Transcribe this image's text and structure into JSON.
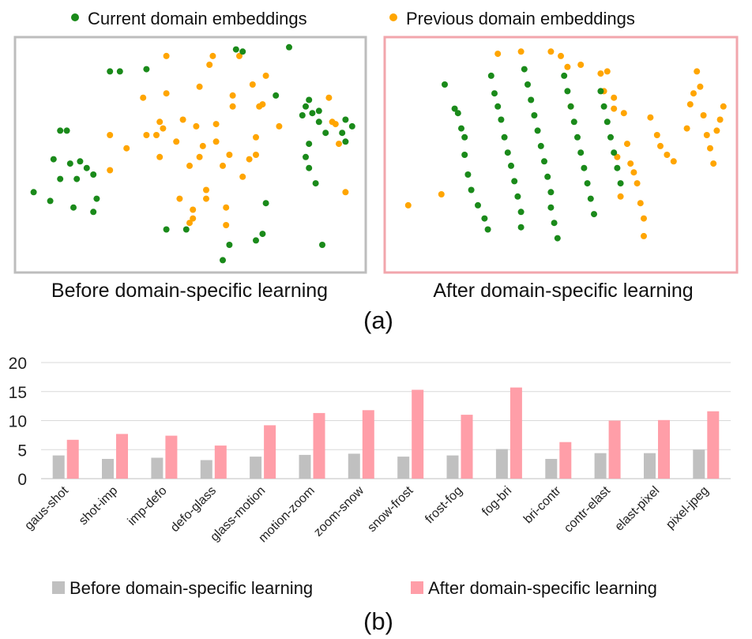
{
  "colors": {
    "current": "#1a8a1a",
    "previous": "#ffa500",
    "before_bar": "#c0c0c0",
    "after_bar": "#ff9ea8",
    "left_frame": "#bdbdbd",
    "right_frame": "#f2a6ac",
    "grid": "#d9d9d9"
  },
  "chart_data": [
    {
      "type": "scatter",
      "panel_id": "a",
      "panel_label": "(a)",
      "legend": {
        "current": "Current domain embeddings",
        "previous": "Previous domain embeddings"
      },
      "axis_range": {
        "x": [
          0,
          100
        ],
        "y": [
          0,
          100
        ]
      },
      "plots": [
        {
          "title": "Before domain-specific learning",
          "current": [
            [
              3,
              33
            ],
            [
              8,
              29
            ],
            [
              11,
              61
            ],
            [
              9,
              48
            ],
            [
              11,
              39
            ],
            [
              13,
              61
            ],
            [
              14,
              46
            ],
            [
              15,
              26
            ],
            [
              16,
              39
            ],
            [
              17,
              47
            ],
            [
              19,
              44
            ],
            [
              21,
              41
            ],
            [
              21,
              24
            ],
            [
              22,
              30
            ],
            [
              26,
              88
            ],
            [
              29,
              88
            ],
            [
              37,
              89
            ],
            [
              43,
              16
            ],
            [
              49,
              16
            ],
            [
              60,
              2
            ],
            [
              64,
              98
            ],
            [
              66,
              97
            ],
            [
              62,
              9
            ],
            [
              70,
              11
            ],
            [
              72,
              14
            ],
            [
              73,
              28
            ],
            [
              76,
              77
            ],
            [
              80,
              99
            ],
            [
              84,
              68
            ],
            [
              85,
              49
            ],
            [
              86,
              44
            ],
            [
              86,
              55
            ],
            [
              87,
              69
            ],
            [
              88,
              37
            ],
            [
              89,
              65
            ],
            [
              91,
              60
            ],
            [
              86,
              75
            ],
            [
              85,
              72
            ],
            [
              89,
              70
            ],
            [
              90,
              9
            ],
            [
              97,
              66
            ],
            [
              97,
              56
            ],
            [
              96,
              60
            ],
            [
              99,
              63
            ]
          ],
          "previous": [
            [
              26,
              59
            ],
            [
              26,
              43
            ],
            [
              31,
              53
            ],
            [
              36,
              76
            ],
            [
              37,
              59
            ],
            [
              40,
              59
            ],
            [
              41,
              49
            ],
            [
              41,
              65
            ],
            [
              42,
              62
            ],
            [
              43,
              78
            ],
            [
              43,
              95
            ],
            [
              46,
              56
            ],
            [
              47,
              30
            ],
            [
              48,
              66
            ],
            [
              50,
              45
            ],
            [
              50,
              19
            ],
            [
              51,
              25
            ],
            [
              51,
              21
            ],
            [
              52,
              63
            ],
            [
              53,
              49
            ],
            [
              53,
              81
            ],
            [
              54,
              54
            ],
            [
              55,
              34
            ],
            [
              55,
              30
            ],
            [
              56,
              91
            ],
            [
              57,
              95
            ],
            [
              58,
              64
            ],
            [
              58,
              56
            ],
            [
              60,
              45
            ],
            [
              61,
              26
            ],
            [
              61,
              18
            ],
            [
              62,
              50
            ],
            [
              63,
              72
            ],
            [
              63,
              77
            ],
            [
              65,
              95
            ],
            [
              66,
              40
            ],
            [
              68,
              48
            ],
            [
              69,
              82
            ],
            [
              70,
              50
            ],
            [
              70,
              58
            ],
            [
              71,
              72
            ],
            [
              72,
              73
            ],
            [
              73,
              86
            ],
            [
              77,
              63
            ],
            [
              92,
              76
            ],
            [
              93,
              65
            ],
            [
              94,
              64
            ],
            [
              95,
              55
            ],
            [
              97,
              33
            ]
          ]
        },
        {
          "title": "After domain-specific learning",
          "current": [
            [
              15,
              82
            ],
            [
              18,
              71
            ],
            [
              19,
              69
            ],
            [
              20,
              62
            ],
            [
              21,
              58
            ],
            [
              21,
              50
            ],
            [
              22,
              41
            ],
            [
              23,
              34
            ],
            [
              25,
              27
            ],
            [
              27,
              21
            ],
            [
              28,
              16
            ],
            [
              29,
              86
            ],
            [
              30,
              78
            ],
            [
              31,
              72
            ],
            [
              32,
              66
            ],
            [
              33,
              58
            ],
            [
              34,
              51
            ],
            [
              35,
              45
            ],
            [
              36,
              38
            ],
            [
              37,
              31
            ],
            [
              38,
              24
            ],
            [
              38,
              17
            ],
            [
              39,
              89
            ],
            [
              40,
              82
            ],
            [
              41,
              75
            ],
            [
              42,
              68
            ],
            [
              43,
              61
            ],
            [
              44,
              54
            ],
            [
              45,
              47
            ],
            [
              46,
              40
            ],
            [
              47,
              33
            ],
            [
              47,
              26
            ],
            [
              48,
              19
            ],
            [
              49,
              12
            ],
            [
              51,
              86
            ],
            [
              52,
              79
            ],
            [
              53,
              72
            ],
            [
              54,
              65
            ],
            [
              55,
              58
            ],
            [
              56,
              51
            ],
            [
              57,
              44
            ],
            [
              58,
              37
            ],
            [
              59,
              30
            ],
            [
              60,
              23
            ],
            [
              62,
              79
            ],
            [
              63,
              72
            ],
            [
              64,
              65
            ],
            [
              65,
              58
            ],
            [
              66,
              51
            ],
            [
              67,
              44
            ],
            [
              68,
              37
            ]
          ],
          "previous": [
            [
              4,
              27
            ],
            [
              14,
              32
            ],
            [
              31,
              96
            ],
            [
              38,
              97
            ],
            [
              47,
              97
            ],
            [
              50,
              95
            ],
            [
              52,
              90
            ],
            [
              53,
              72
            ],
            [
              56,
              91
            ],
            [
              62,
              87
            ],
            [
              63,
              79
            ],
            [
              64,
              88
            ],
            [
              66,
              76
            ],
            [
              66,
              71
            ],
            [
              67,
              49
            ],
            [
              68,
              31
            ],
            [
              69,
              69
            ],
            [
              70,
              55
            ],
            [
              71,
              46
            ],
            [
              72,
              42
            ],
            [
              73,
              37
            ],
            [
              74,
              28
            ],
            [
              75,
              21
            ],
            [
              75,
              13
            ],
            [
              77,
              67
            ],
            [
              79,
              59
            ],
            [
              80,
              54
            ],
            [
              82,
              50
            ],
            [
              84,
              47
            ],
            [
              88,
              62
            ],
            [
              89,
              73
            ],
            [
              90,
              78
            ],
            [
              91,
              88
            ],
            [
              92,
              81
            ],
            [
              93,
              68
            ],
            [
              94,
              59
            ],
            [
              95,
              53
            ],
            [
              96,
              46
            ],
            [
              97,
              61
            ],
            [
              98,
              66
            ],
            [
              99,
              72
            ]
          ]
        }
      ]
    },
    {
      "type": "bar",
      "panel_id": "b",
      "panel_label": "(b)",
      "categories": [
        "gaus-shot",
        "shot-imp",
        "imp-defo",
        "defo-glass",
        "glass-motion",
        "motion-zoom",
        "zoom-snow",
        "snow-frost",
        "frost-fog",
        "fog-bri",
        "bri-contr",
        "contr-elast",
        "elast-pixel",
        "pixel-jpeg"
      ],
      "series": [
        {
          "name": "Before domain-specific learning",
          "values": [
            4.0,
            3.4,
            3.6,
            3.2,
            3.8,
            4.1,
            4.3,
            3.8,
            4.0,
            5.1,
            3.4,
            4.4,
            4.4,
            5.0
          ]
        },
        {
          "name": "After domain-specific learning",
          "values": [
            6.7,
            7.7,
            7.4,
            5.7,
            9.2,
            11.3,
            11.8,
            15.3,
            11.0,
            15.7,
            6.3,
            10.0,
            10.1,
            11.6
          ]
        }
      ],
      "ylim": [
        0,
        20
      ],
      "yticks": [
        "0",
        "5",
        "10",
        "15",
        "20"
      ],
      "grid": true,
      "legend_position": "bottom"
    }
  ]
}
